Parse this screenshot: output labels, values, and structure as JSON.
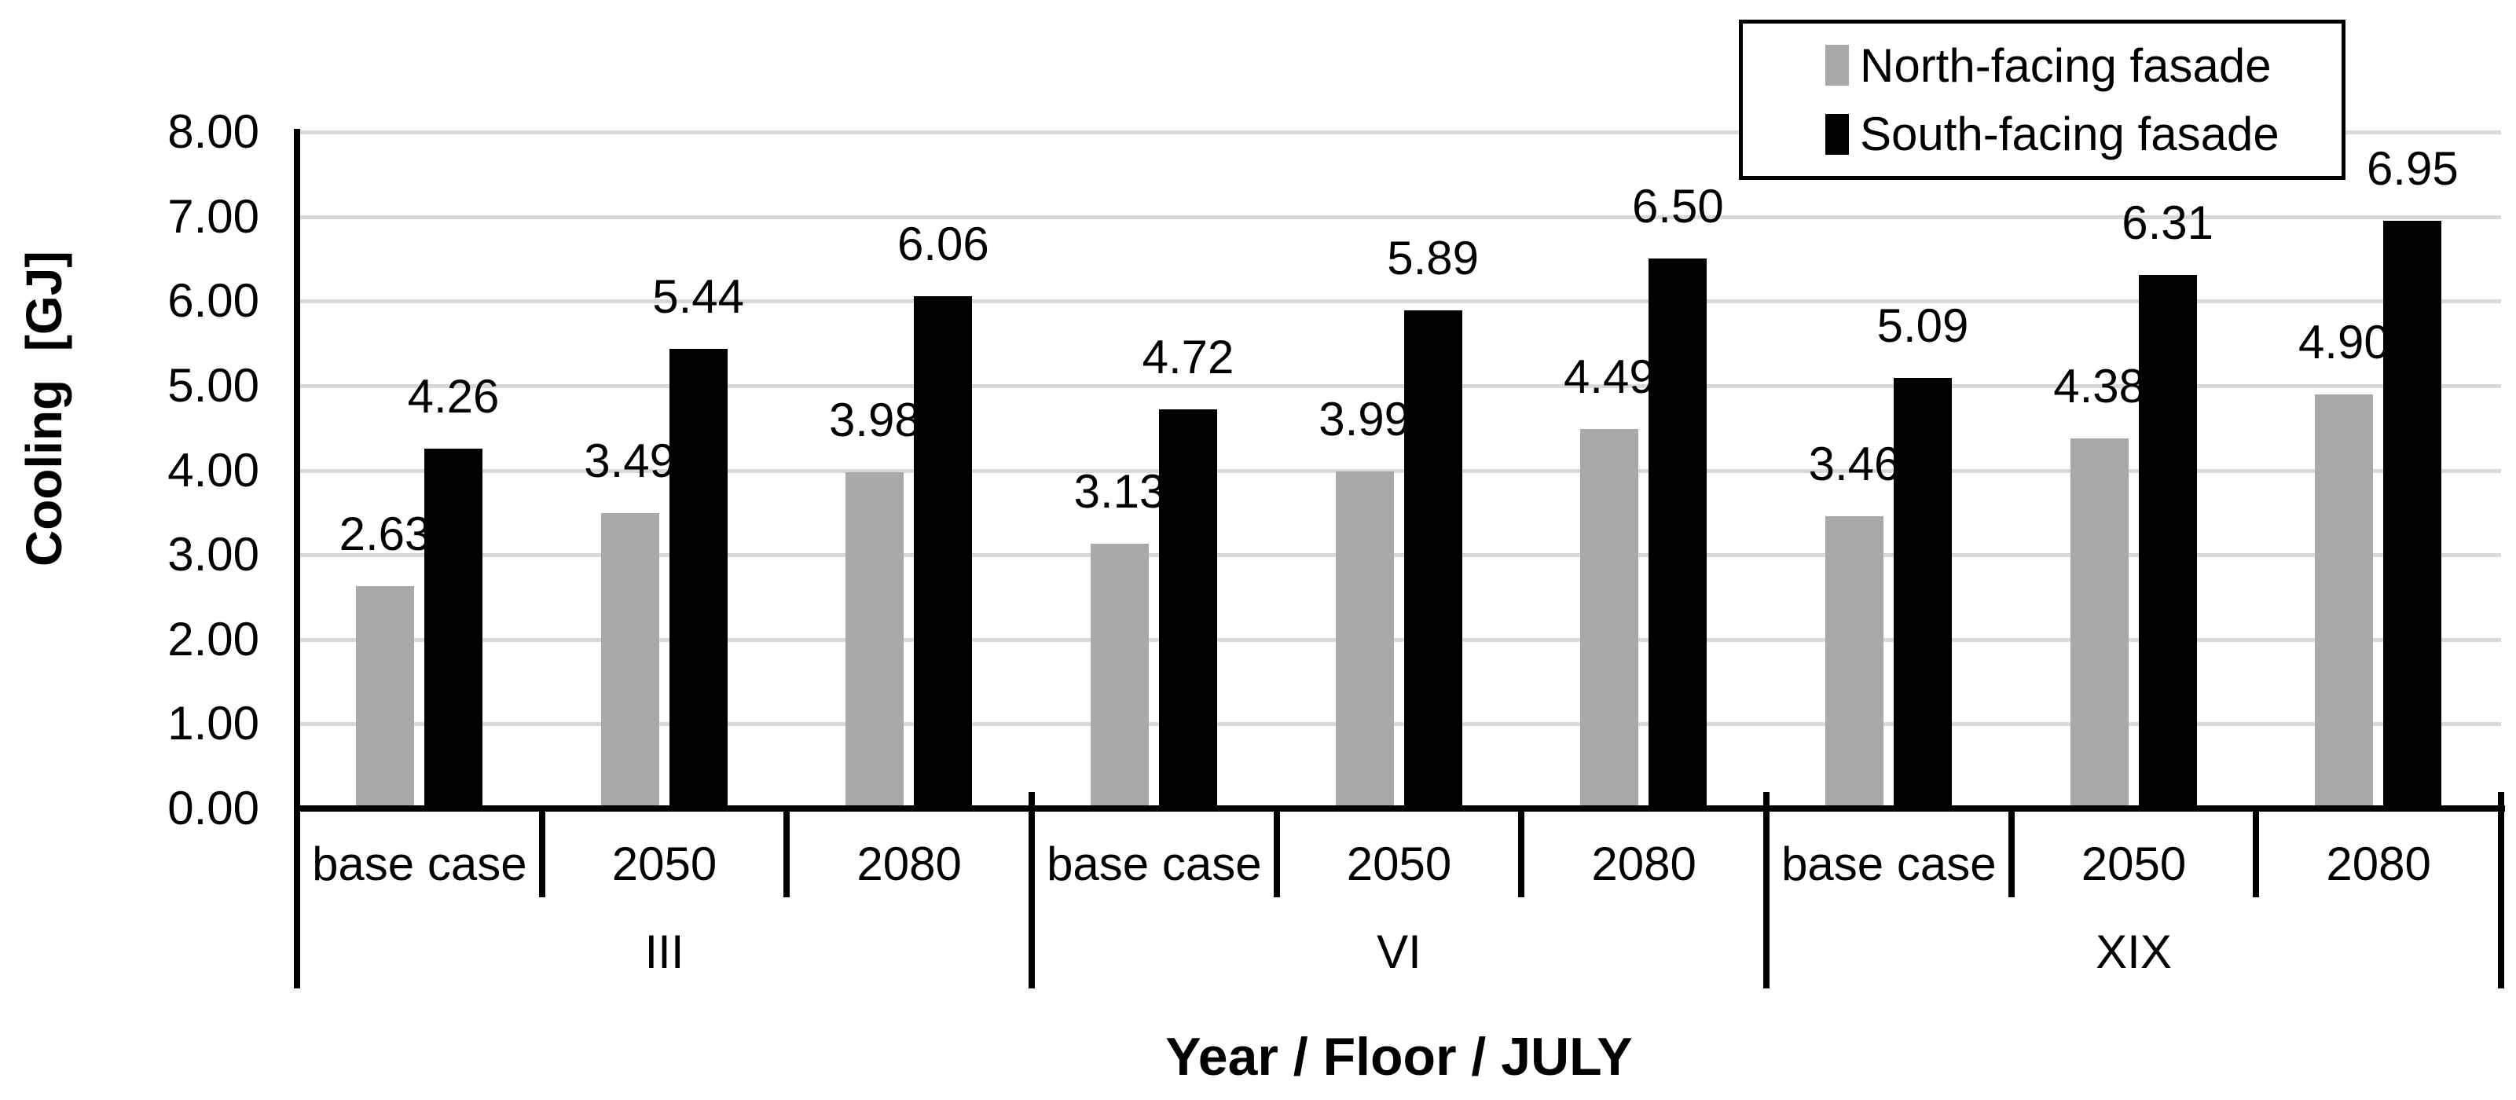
{
  "chart_data": {
    "type": "bar",
    "title": "",
    "y_axis": {
      "title": "Cooling  [GJ]",
      "min": 0,
      "max": 8,
      "step": 1,
      "tick_decimals": 2,
      "tick_labels": [
        "0.00",
        "1.00",
        "2.00",
        "3.00",
        "4.00",
        "5.00",
        "6.00",
        "7.00",
        "8.00"
      ]
    },
    "x_axis": {
      "title": "Year / Floor / JULY"
    },
    "grid": true,
    "data_labels": true,
    "data_label_decimals": 2,
    "groups": [
      {
        "label": "III",
        "categories": [
          "base case",
          "2050",
          "2080"
        ]
      },
      {
        "label": "VI",
        "categories": [
          "base case",
          "2050",
          "2080"
        ]
      },
      {
        "label": "XIX",
        "categories": [
          "base case",
          "2050",
          "2080"
        ]
      }
    ],
    "series": [
      {
        "name": "North-facing fasade",
        "color": "#a9a9a9",
        "values": [
          2.63,
          3.49,
          3.98,
          3.13,
          3.99,
          4.49,
          3.46,
          4.38,
          4.9
        ]
      },
      {
        "name": "South-facing fasade",
        "color": "#000000",
        "values": [
          4.26,
          5.44,
          6.06,
          4.72,
          5.89,
          6.5,
          5.09,
          6.31,
          6.95
        ]
      }
    ],
    "legend": {
      "position": "top-right"
    }
  },
  "colors": {
    "background": "#ffffff",
    "gridline": "#d9d9d9",
    "axis": "#000000",
    "bar_north": "#a9a9a9",
    "bar_south": "#000000"
  }
}
